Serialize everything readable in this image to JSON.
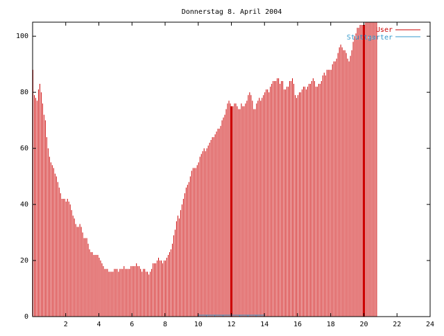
{
  "chart_data": {
    "type": "bar",
    "title": "Donnerstag 8. April 2004",
    "xlabel": "",
    "ylabel": "",
    "xlim": [
      0,
      24
    ],
    "ylim": [
      0,
      105
    ],
    "x_ticks": [
      "2",
      "4",
      "6",
      "8",
      "10",
      "12",
      "14",
      "16",
      "18",
      "20",
      "22",
      "24"
    ],
    "y_ticks": [
      "0",
      "20",
      "40",
      "60",
      "80",
      "100"
    ],
    "legend_position": "top-right",
    "grid": false,
    "series": [
      {
        "name": "User",
        "color": "#cc0000",
        "start_hour": 0,
        "step_hours": 0.08333,
        "values": [
          88,
          79,
          78,
          77,
          81,
          83,
          80,
          76,
          72,
          70,
          64,
          60,
          57,
          55,
          54,
          53,
          51,
          50,
          48,
          46,
          44,
          42,
          42,
          42,
          41,
          42,
          41,
          40,
          38,
          36,
          35,
          33,
          32,
          32,
          33,
          32,
          30,
          28,
          28,
          28,
          26,
          24,
          23,
          23,
          22,
          22,
          22,
          22,
          21,
          20,
          19,
          18,
          17,
          17,
          17,
          16,
          16,
          16,
          16,
          17,
          17,
          17,
          16,
          17,
          17,
          17,
          18,
          17,
          17,
          17,
          17,
          18,
          18,
          18,
          18,
          19,
          18,
          18,
          17,
          16,
          17,
          17,
          16,
          16,
          15,
          16,
          17,
          19,
          19,
          19,
          20,
          21,
          20,
          20,
          19,
          20,
          20,
          21,
          22,
          23,
          24,
          26,
          29,
          31,
          34,
          36,
          35,
          38,
          40,
          42,
          44,
          46,
          47,
          48,
          50,
          52,
          53,
          53,
          53,
          54,
          55,
          57,
          58,
          59,
          60,
          59,
          60,
          61,
          62,
          63,
          64,
          64,
          65,
          66,
          67,
          67,
          68,
          70,
          71,
          72,
          74,
          76,
          77,
          76,
          75,
          75,
          76,
          76,
          75,
          74,
          74,
          76,
          75,
          75,
          76,
          77,
          79,
          80,
          79,
          77,
          74,
          74,
          76,
          77,
          78,
          77,
          78,
          79,
          80,
          81,
          81,
          80,
          82,
          83,
          84,
          84,
          84,
          85,
          85,
          83,
          84,
          84,
          81,
          81,
          82,
          82,
          84,
          84,
          85,
          83,
          79,
          78,
          79,
          80,
          80,
          81,
          82,
          82,
          81,
          82,
          83,
          83,
          84,
          85,
          84,
          82,
          82,
          83,
          83,
          84,
          86,
          87,
          86,
          88,
          88,
          88,
          88,
          90,
          91,
          91,
          92,
          94,
          96,
          97,
          96,
          95,
          95,
          94,
          92,
          91,
          93,
          95,
          98,
          100,
          101,
          103,
          103,
          104,
          104,
          104,
          104,
          105,
          105,
          105,
          105,
          105,
          105,
          105,
          105,
          105
        ]
      },
      {
        "name": "Stuttgarter",
        "color": "#3399cc",
        "start_hour": 0,
        "step_hours": 0.5,
        "values": [
          0,
          0,
          0,
          0,
          0,
          0,
          0,
          0,
          0,
          0,
          0,
          0,
          0,
          0,
          0,
          0,
          0,
          0,
          0,
          0,
          0.5,
          0.5,
          0.5,
          0.5,
          0.5,
          0.5,
          0.5,
          0.5,
          0,
          0,
          0,
          0,
          0,
          0,
          0,
          0,
          0,
          0,
          0,
          0,
          0,
          0,
          0,
          0,
          0,
          0,
          0,
          0
        ]
      }
    ],
    "highlight_hours": [
      12,
      20
    ]
  }
}
